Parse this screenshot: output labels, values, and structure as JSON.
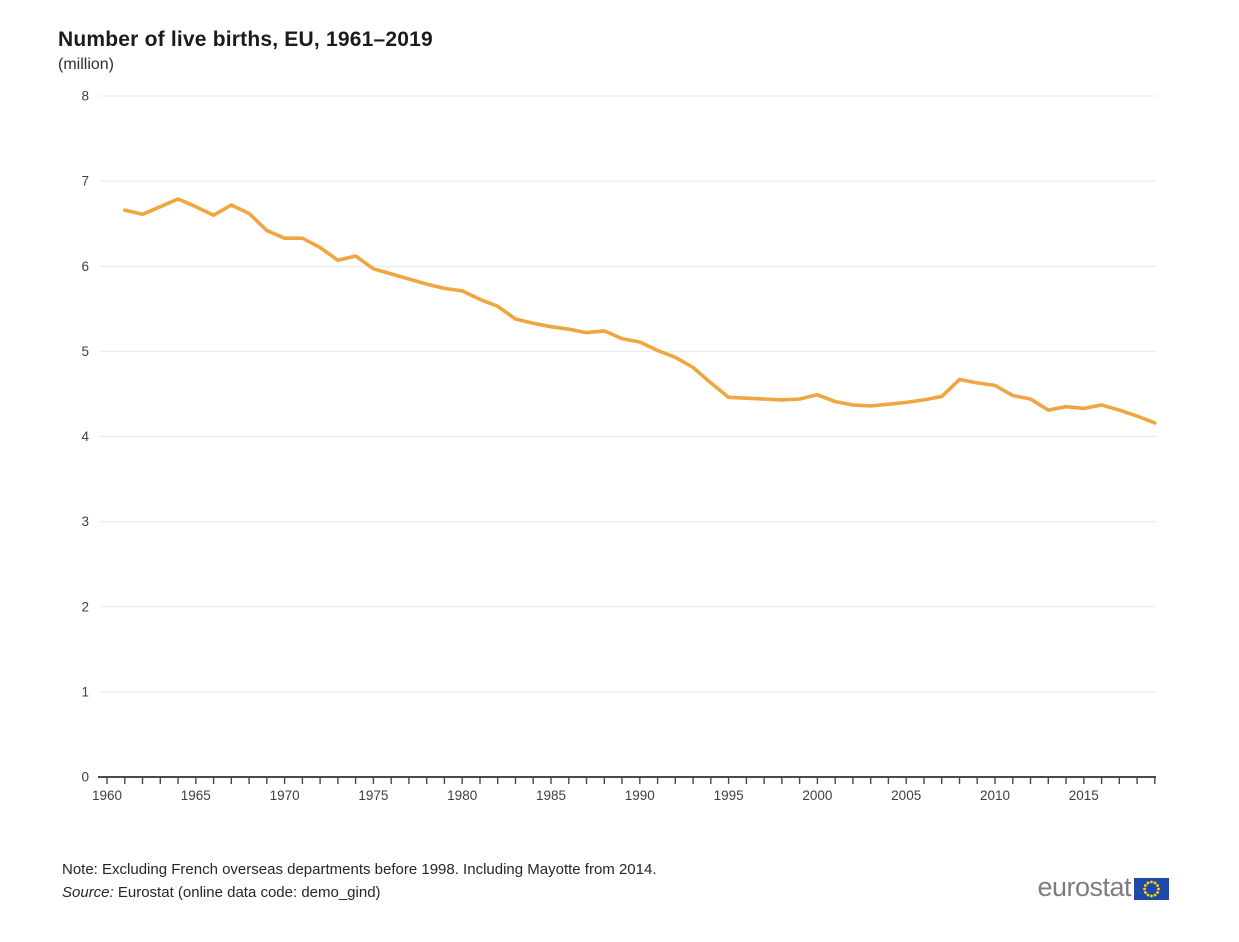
{
  "header": {
    "title": "Number of live births, EU, 1961–2019",
    "subtitle": "(million)"
  },
  "chart_data": {
    "type": "line",
    "title": "Number of live births, EU, 1961–2019",
    "unit": "million",
    "series_name": "Live births (million)",
    "x": [
      1961,
      1962,
      1963,
      1964,
      1965,
      1966,
      1967,
      1968,
      1969,
      1970,
      1971,
      1972,
      1973,
      1974,
      1975,
      1976,
      1977,
      1978,
      1979,
      1980,
      1981,
      1982,
      1983,
      1984,
      1985,
      1986,
      1987,
      1988,
      1989,
      1990,
      1991,
      1992,
      1993,
      1994,
      1995,
      1996,
      1997,
      1998,
      1999,
      2000,
      2001,
      2002,
      2003,
      2004,
      2005,
      2006,
      2007,
      2008,
      2009,
      2010,
      2011,
      2012,
      2013,
      2014,
      2015,
      2016,
      2017,
      2018,
      2019
    ],
    "values": [
      6.66,
      6.61,
      6.7,
      6.79,
      6.7,
      6.6,
      6.72,
      6.62,
      6.42,
      6.33,
      6.33,
      6.22,
      6.07,
      6.12,
      5.97,
      5.91,
      5.85,
      5.79,
      5.74,
      5.71,
      5.61,
      5.53,
      5.38,
      5.33,
      5.29,
      5.26,
      5.22,
      5.24,
      5.15,
      5.11,
      5.01,
      4.93,
      4.81,
      4.63,
      4.46,
      4.45,
      4.44,
      4.43,
      4.44,
      4.49,
      4.41,
      4.37,
      4.36,
      4.38,
      4.4,
      4.43,
      4.47,
      4.67,
      4.63,
      4.6,
      4.48,
      4.44,
      4.31,
      4.35,
      4.33,
      4.37,
      4.31,
      4.24,
      4.16
    ],
    "xlim": [
      1960,
      2019
    ],
    "ylim": [
      0,
      8
    ],
    "y_ticks": [
      0,
      1,
      2,
      3,
      4,
      5,
      6,
      7,
      8
    ],
    "x_tick_labels": [
      1960,
      1965,
      1970,
      1975,
      1980,
      1985,
      1990,
      1995,
      2000,
      2005,
      2010,
      2015
    ],
    "line_color": "#F0A640",
    "grid": true,
    "legend": "none"
  },
  "footer": {
    "note": "Note: Excluding French overseas departments before 1998. Including Mayotte from 2014.",
    "source_label": "Source:",
    "source_text": " Eurostat (online data code: demo_gind)",
    "logo_text": "eurostat"
  },
  "colors": {
    "line": "#F0A640",
    "grid": "#E8E8E8",
    "axis": "#4A4A4A",
    "text": "#3F3F3F",
    "logo_gray": "#7D7D7D",
    "flag_blue": "#1F4AA5",
    "flag_stars": "#FFD617"
  }
}
